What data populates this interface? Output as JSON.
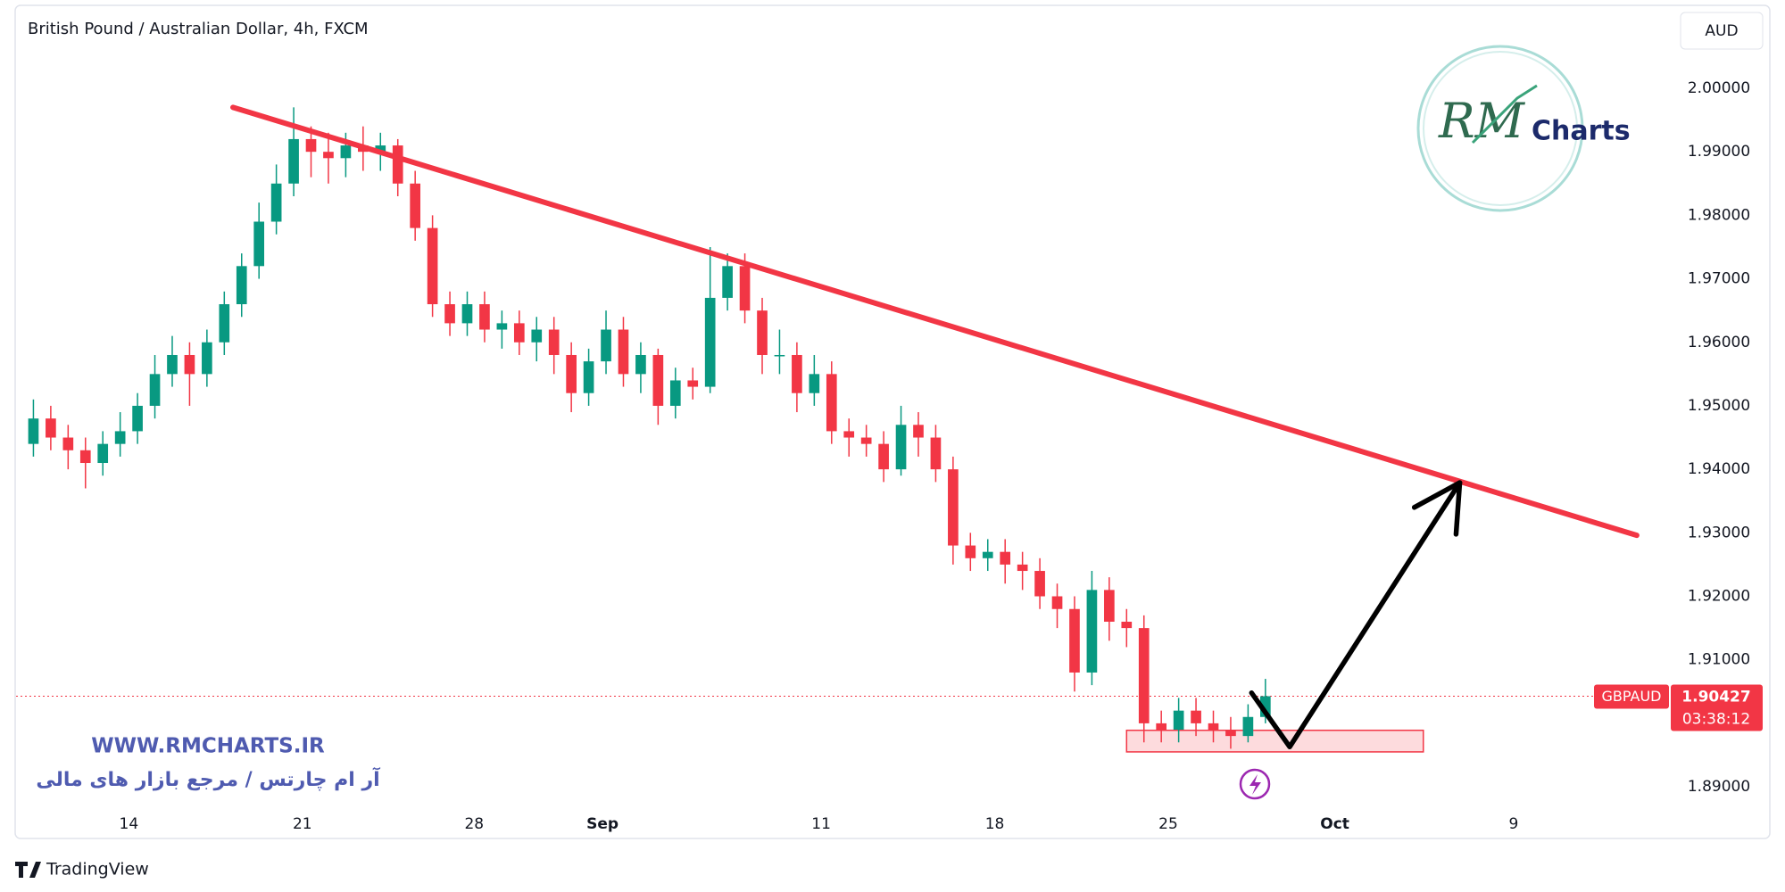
{
  "chart_data": {
    "type": "candlestick",
    "title": "British Pound / Australian Dollar, 4h, FXCM",
    "currency": "AUD",
    "symbol": "GBPAUD",
    "last_price": 1.90427,
    "countdown": "03:38:12",
    "up_color": "#089981",
    "down_color": "#f23645",
    "grid": false,
    "xlim": [
      0,
      95
    ],
    "xticks": [
      {
        "value": 6.5,
        "label": "14"
      },
      {
        "value": 16.5,
        "label": "21"
      },
      {
        "value": 26.4,
        "label": "28"
      },
      {
        "value": 33.8,
        "label": "Sep"
      },
      {
        "value": 46.4,
        "label": "11"
      },
      {
        "value": 56.4,
        "label": "18"
      },
      {
        "value": 66.4,
        "label": "25"
      },
      {
        "value": 76.0,
        "label": "Oct"
      },
      {
        "value": 86.3,
        "label": "9"
      }
    ],
    "ylim": [
      1.8865,
      2.0125
    ],
    "yticks": [
      {
        "value": 2.0,
        "label": "2.00000"
      },
      {
        "value": 1.99,
        "label": "1.99000"
      },
      {
        "value": 1.98,
        "label": "1.98000"
      },
      {
        "value": 1.97,
        "label": "1.97000"
      },
      {
        "value": 1.96,
        "label": "1.96000"
      },
      {
        "value": 1.95,
        "label": "1.95000"
      },
      {
        "value": 1.94,
        "label": "1.94000"
      },
      {
        "value": 1.93,
        "label": "1.93000"
      },
      {
        "value": 1.92,
        "label": "1.92000"
      },
      {
        "value": 1.91,
        "label": "1.91000"
      },
      {
        "value": 1.89,
        "label": "1.89000"
      }
    ],
    "x": [
      1,
      2,
      3,
      4,
      5,
      6,
      7,
      8,
      9,
      10,
      11,
      12,
      13,
      14,
      15,
      16,
      17,
      18,
      19,
      20,
      21,
      22,
      23,
      24,
      25,
      26,
      27,
      28,
      29,
      30,
      31,
      32,
      33,
      34,
      35,
      36,
      37,
      38,
      39,
      40,
      41,
      42,
      43,
      44,
      45,
      46,
      47,
      48,
      49,
      50,
      51,
      52,
      53,
      54,
      55,
      56,
      57,
      58,
      59,
      60,
      61,
      62,
      63,
      64,
      65,
      66,
      67,
      68,
      69,
      70,
      71,
      72
    ],
    "open": [
      1.944,
      1.948,
      1.945,
      1.943,
      1.941,
      1.944,
      1.946,
      1.95,
      1.955,
      1.958,
      1.955,
      1.96,
      1.966,
      1.972,
      1.979,
      1.985,
      1.992,
      1.99,
      1.989,
      1.991,
      1.99,
      1.991,
      1.985,
      1.978,
      1.966,
      1.963,
      1.966,
      1.962,
      1.963,
      1.96,
      1.962,
      1.958,
      1.952,
      1.957,
      1.962,
      1.955,
      1.958,
      1.95,
      1.954,
      1.953,
      1.967,
      1.972,
      1.965,
      1.958,
      1.958,
      1.952,
      1.955,
      1.946,
      1.945,
      1.944,
      1.94,
      1.947,
      1.945,
      1.94,
      1.928,
      1.926,
      1.927,
      1.925,
      1.924,
      1.92,
      1.918,
      1.908,
      1.921,
      1.916,
      1.915,
      1.9,
      1.899,
      1.902,
      1.9,
      1.899,
      1.898,
      1.901
    ],
    "high": [
      1.951,
      1.95,
      1.947,
      1.945,
      1.946,
      1.949,
      1.952,
      1.958,
      1.961,
      1.96,
      1.962,
      1.968,
      1.974,
      1.982,
      1.988,
      1.997,
      1.994,
      1.993,
      1.993,
      1.994,
      1.993,
      1.992,
      1.987,
      1.98,
      1.968,
      1.968,
      1.968,
      1.965,
      1.965,
      1.964,
      1.964,
      1.96,
      1.959,
      1.965,
      1.964,
      1.96,
      1.959,
      1.956,
      1.956,
      1.975,
      1.974,
      1.974,
      1.967,
      1.962,
      1.96,
      1.958,
      1.957,
      1.948,
      1.947,
      1.946,
      1.95,
      1.949,
      1.947,
      1.942,
      1.93,
      1.929,
      1.929,
      1.927,
      1.926,
      1.922,
      1.92,
      1.924,
      1.923,
      1.918,
      1.917,
      1.902,
      1.904,
      1.904,
      1.902,
      1.901,
      1.903,
      1.907
    ],
    "low": [
      1.942,
      1.943,
      1.94,
      1.937,
      1.939,
      1.942,
      1.944,
      1.948,
      1.953,
      1.95,
      1.953,
      1.958,
      1.964,
      1.97,
      1.977,
      1.983,
      1.986,
      1.985,
      1.986,
      1.987,
      1.987,
      1.983,
      1.976,
      1.964,
      1.961,
      1.961,
      1.96,
      1.959,
      1.958,
      1.957,
      1.955,
      1.949,
      1.95,
      1.955,
      1.953,
      1.952,
      1.947,
      1.948,
      1.951,
      1.952,
      1.965,
      1.963,
      1.955,
      1.955,
      1.949,
      1.95,
      1.944,
      1.942,
      1.942,
      1.938,
      1.939,
      1.942,
      1.938,
      1.925,
      1.924,
      1.924,
      1.922,
      1.921,
      1.918,
      1.915,
      1.905,
      1.906,
      1.913,
      1.912,
      1.897,
      1.897,
      1.897,
      1.898,
      1.897,
      1.896,
      1.897,
      1.9
    ],
    "close": [
      1.948,
      1.945,
      1.943,
      1.941,
      1.944,
      1.946,
      1.95,
      1.955,
      1.958,
      1.955,
      1.96,
      1.966,
      1.972,
      1.979,
      1.985,
      1.992,
      1.99,
      1.989,
      1.991,
      1.99,
      1.991,
      1.985,
      1.978,
      1.966,
      1.963,
      1.966,
      1.962,
      1.963,
      1.96,
      1.962,
      1.958,
      1.952,
      1.957,
      1.962,
      1.955,
      1.958,
      1.95,
      1.954,
      1.953,
      1.967,
      1.972,
      1.965,
      1.958,
      1.958,
      1.952,
      1.955,
      1.946,
      1.945,
      1.944,
      1.94,
      1.947,
      1.945,
      1.94,
      1.928,
      1.926,
      1.927,
      1.925,
      1.924,
      1.92,
      1.918,
      1.908,
      1.921,
      1.916,
      1.915,
      1.9,
      1.899,
      1.902,
      1.9,
      1.899,
      1.898,
      1.901,
      1.90427
    ],
    "trendline": {
      "x": [
        12.5,
        93.4
      ],
      "y": [
        1.997,
        1.9296
      ],
      "color": "#f23645"
    },
    "arrow": {
      "x": [
        71.2,
        73.4,
        83.2
      ],
      "y": [
        1.9048,
        1.8963,
        1.9379
      ],
      "color": "#000000"
    },
    "zone": {
      "x": [
        64.0,
        81.1
      ],
      "y": [
        1.8955,
        1.8989
      ],
      "color": "#f23645"
    },
    "watermark": {
      "url": "WWW.RMCHARTS.IR",
      "tagline": "آر ام چارتس / مرجع بازار های مالی"
    },
    "logo": {
      "mark": "RM",
      "text": "Charts"
    },
    "brand": "TradingView"
  }
}
